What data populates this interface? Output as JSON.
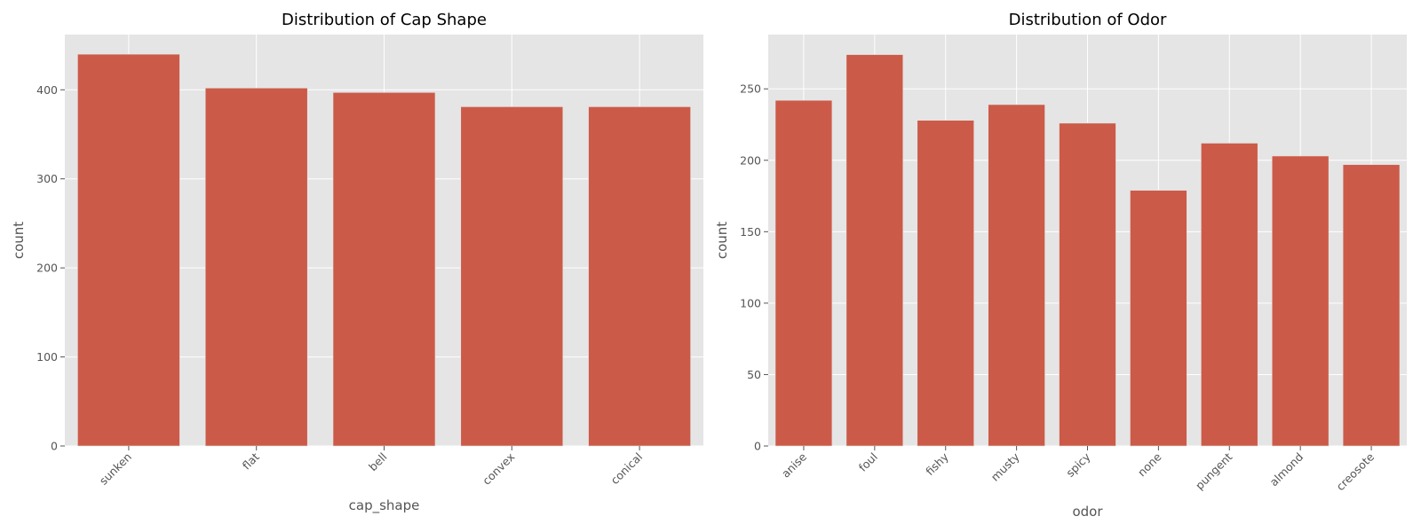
{
  "colors": {
    "bar": "#cc5a48",
    "panel": "#e5e5e5",
    "grid": "#ffffff",
    "text": "#555555"
  },
  "chart_data": [
    {
      "type": "bar",
      "title": "Distribution of Cap Shape",
      "xlabel": "cap_shape",
      "ylabel": "count",
      "categories": [
        "sunken",
        "flat",
        "bell",
        "convex",
        "conical"
      ],
      "values": [
        440,
        402,
        397,
        381,
        381
      ],
      "ylim": [
        0,
        462
      ],
      "yticks": [
        0,
        100,
        200,
        300,
        400
      ],
      "grid": true,
      "xtick_rotation": -45
    },
    {
      "type": "bar",
      "title": "Distribution of Odor",
      "xlabel": "odor",
      "ylabel": "count",
      "categories": [
        "anise",
        "foul",
        "fishy",
        "musty",
        "spicy",
        "none",
        "pungent",
        "almond",
        "creosote"
      ],
      "values": [
        242,
        274,
        228,
        239,
        226,
        179,
        212,
        203,
        197
      ],
      "ylim": [
        0,
        288
      ],
      "yticks": [
        0,
        50,
        100,
        150,
        200,
        250
      ],
      "grid": true,
      "xtick_rotation": -45
    }
  ]
}
